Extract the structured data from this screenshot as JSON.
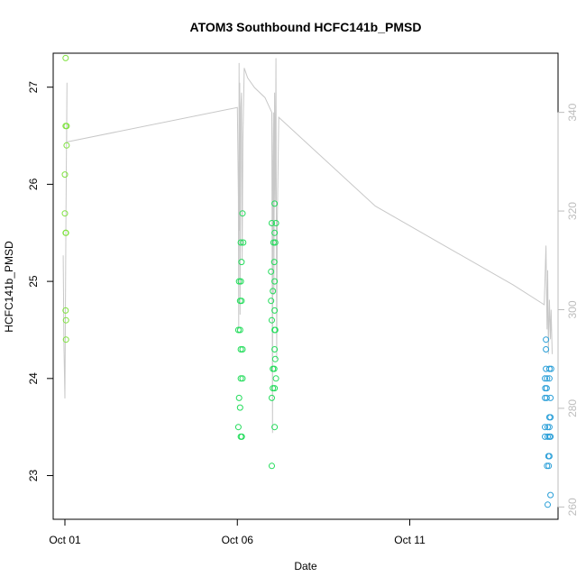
{
  "chart_data": {
    "type": "scatter",
    "title": "ATOM3 Southbound HCFC141b_PMSD",
    "xlabel": "Date",
    "ylabel": "HCFC141b_PMSD",
    "x_ticks": [
      {
        "day": 1,
        "label": "Oct 01"
      },
      {
        "day": 6,
        "label": "Oct 06"
      },
      {
        "day": 11,
        "label": "Oct 11"
      }
    ],
    "xlim": [
      0.66,
      15.3
    ],
    "ylim": [
      22.55,
      27.35
    ],
    "y_ticks": [
      23,
      24,
      25,
      26,
      27
    ],
    "y2lim": [
      257.5,
      352.0
    ],
    "y2_ticks": [
      260,
      280,
      300,
      320,
      340
    ],
    "colors": {
      "line": "#c8c8c8",
      "right_axis": "#bdbdbd",
      "group1": "#7fe23f",
      "group2": "#22dc5a",
      "group3": "#2a9fd8"
    },
    "series": [
      {
        "color": "group1",
        "points": [
          [
            1.02,
            27.3
          ],
          [
            1.02,
            26.6
          ],
          [
            1.05,
            26.6
          ],
          [
            1.05,
            26.4
          ],
          [
            1.0,
            26.1
          ],
          [
            1.0,
            25.7
          ],
          [
            1.02,
            25.5
          ],
          [
            1.03,
            25.5
          ],
          [
            1.02,
            24.7
          ],
          [
            1.03,
            24.6
          ],
          [
            1.03,
            24.4
          ]
        ]
      },
      {
        "color": "group2",
        "points": [
          [
            6.15,
            25.7
          ],
          [
            6.1,
            25.4
          ],
          [
            6.17,
            25.4
          ],
          [
            6.12,
            25.2
          ],
          [
            6.05,
            25.0
          ],
          [
            6.1,
            25.0
          ],
          [
            6.08,
            24.8
          ],
          [
            6.12,
            24.8
          ],
          [
            6.03,
            24.5
          ],
          [
            6.08,
            24.5
          ],
          [
            6.1,
            24.3
          ],
          [
            6.15,
            24.3
          ],
          [
            6.1,
            24.0
          ],
          [
            6.15,
            24.0
          ],
          [
            6.05,
            23.8
          ],
          [
            6.08,
            23.7
          ],
          [
            6.03,
            23.5
          ],
          [
            6.1,
            23.4
          ],
          [
            6.13,
            23.4
          ],
          [
            7.0,
            25.6
          ],
          [
            7.12,
            25.6
          ],
          [
            7.08,
            25.5
          ],
          [
            7.05,
            25.4
          ],
          [
            7.1,
            25.4
          ],
          [
            7.07,
            25.2
          ],
          [
            6.98,
            25.1
          ],
          [
            7.08,
            25.0
          ],
          [
            7.03,
            24.9
          ],
          [
            6.98,
            24.8
          ],
          [
            7.08,
            24.7
          ],
          [
            7.0,
            24.6
          ],
          [
            7.08,
            24.5
          ],
          [
            7.1,
            24.5
          ],
          [
            7.08,
            24.3
          ],
          [
            7.1,
            24.2
          ],
          [
            7.03,
            24.1
          ],
          [
            7.07,
            24.1
          ],
          [
            7.12,
            24.0
          ],
          [
            7.03,
            23.9
          ],
          [
            7.08,
            23.9
          ],
          [
            7.0,
            23.8
          ],
          [
            7.08,
            23.5
          ],
          [
            7.0,
            23.1
          ],
          [
            7.08,
            25.8
          ]
        ]
      },
      {
        "color": "group3",
        "points": [
          [
            14.95,
            24.4
          ],
          [
            14.95,
            24.3
          ],
          [
            14.92,
            24.0
          ],
          [
            14.98,
            24.0
          ],
          [
            14.95,
            24.1
          ],
          [
            15.05,
            24.1
          ],
          [
            15.1,
            24.1
          ],
          [
            14.93,
            23.9
          ],
          [
            14.97,
            23.9
          ],
          [
            15.05,
            24.0
          ],
          [
            14.92,
            23.8
          ],
          [
            14.97,
            23.8
          ],
          [
            15.08,
            23.8
          ],
          [
            15.05,
            23.6
          ],
          [
            15.08,
            23.6
          ],
          [
            14.92,
            23.5
          ],
          [
            15.0,
            23.5
          ],
          [
            15.05,
            23.5
          ],
          [
            14.92,
            23.4
          ],
          [
            15.0,
            23.4
          ],
          [
            15.05,
            23.4
          ],
          [
            15.08,
            23.4
          ],
          [
            15.02,
            23.2
          ],
          [
            15.05,
            23.2
          ],
          [
            14.98,
            23.1
          ],
          [
            15.03,
            23.1
          ],
          [
            15.08,
            22.8
          ],
          [
            15.0,
            22.7
          ]
        ]
      }
    ],
    "line_series": [
      {
        "axis": "right",
        "points": [
          [
            0.95,
            311
          ],
          [
            0.97,
            293
          ],
          [
            1.0,
            282
          ],
          [
            1.03,
            320
          ],
          [
            1.06,
            346
          ],
          [
            1.05,
            334
          ],
          [
            6.0,
            341
          ],
          [
            6.03,
            323
          ],
          [
            6.04,
            296
          ],
          [
            6.05,
            350
          ],
          [
            6.06,
            316
          ],
          [
            6.07,
            346
          ],
          [
            6.08,
            299
          ],
          [
            6.1,
            341
          ],
          [
            6.12,
            344
          ],
          [
            6.14,
            310
          ],
          [
            6.16,
            334
          ],
          [
            6.2,
            349
          ],
          [
            6.3,
            347
          ],
          [
            6.5,
            345
          ],
          [
            6.8,
            343
          ],
          [
            7.0,
            340
          ],
          [
            7.02,
            275
          ],
          [
            7.03,
            330
          ],
          [
            7.05,
            340
          ],
          [
            7.06,
            303
          ],
          [
            7.08,
            344
          ],
          [
            7.1,
            322
          ],
          [
            7.12,
            351
          ],
          [
            7.14,
            290
          ],
          [
            7.16,
            318
          ],
          [
            7.2,
            339
          ],
          [
            10.0,
            321
          ],
          [
            12.0,
            313
          ],
          [
            14.0,
            305
          ],
          [
            14.9,
            301
          ],
          [
            14.95,
            313
          ],
          [
            14.98,
            296
          ],
          [
            15.0,
            308
          ],
          [
            15.02,
            291
          ],
          [
            15.05,
            302
          ],
          [
            15.08,
            294
          ],
          [
            15.1,
            300
          ],
          [
            15.13,
            291
          ]
        ]
      }
    ]
  }
}
